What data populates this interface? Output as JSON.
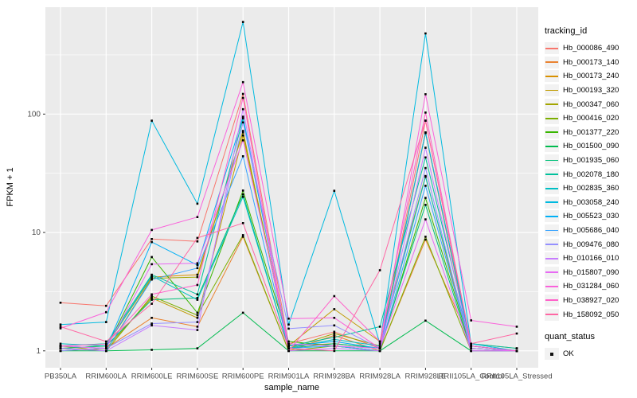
{
  "figure": {
    "background": "#FFFFFF",
    "panel_background": "#EBEBEB",
    "gridline_color": "#FFFFFF",
    "axis_text_color": "#4D4D4D",
    "tick_mark_color": "#333333",
    "point_color": "#000000"
  },
  "chart_data": {
    "type": "line",
    "title": "",
    "xlabel": "sample_name",
    "ylabel": "FPKM + 1",
    "y_scale": "log10",
    "ylim": [
      0.72,
      800
    ],
    "y_ticks": [
      1,
      10,
      100
    ],
    "y_minor_ticks": [
      3.162,
      31.62,
      316.2
    ],
    "grid": "on",
    "legend_position": "right",
    "legend_title": "tracking_id",
    "marker": "small-black-square",
    "categories": [
      "PB350LA",
      "RRIM600LA",
      "RRIM600LE",
      "RRIM600SE",
      "RRIM600PE",
      "RRIM901LA",
      "RRIM928BA",
      "RRIM928LA",
      "RRIM928LE",
      "RRII105LA_Control",
      "RRII105LA_Stressed"
    ],
    "series": [
      {
        "name": "Hb_000086_490",
        "color": "#F8766D",
        "values": [
          2.55,
          2.4,
          8.8,
          8.4,
          148,
          1.15,
          1.45,
          1.05,
          88,
          1.1,
          1.0
        ]
      },
      {
        "name": "Hb_000173_140",
        "color": "#EA8331",
        "values": [
          1.1,
          1.05,
          1.9,
          1.6,
          9.2,
          1.0,
          1.35,
          1.0,
          8.7,
          1.15,
          1.05
        ]
      },
      {
        "name": "Hb_000173_240",
        "color": "#D89000",
        "values": [
          1.05,
          1.1,
          4.2,
          4.4,
          70,
          1.1,
          1.15,
          1.05,
          69,
          1.05,
          1.0
        ]
      },
      {
        "name": "Hb_000193_320",
        "color": "#C09B00",
        "values": [
          1.0,
          1.05,
          2.8,
          1.9,
          66,
          1.1,
          2.25,
          1.2,
          30,
          1.0,
          1.0
        ]
      },
      {
        "name": "Hb_000347_060",
        "color": "#A3A500",
        "values": [
          1.1,
          1.0,
          4.1,
          4.2,
          72,
          1.05,
          1.4,
          1.1,
          70,
          1.1,
          1.0
        ]
      },
      {
        "name": "Hb_000416_020",
        "color": "#7CAE00",
        "values": [
          1.05,
          1.0,
          2.9,
          2.0,
          9.5,
          1.0,
          1.1,
          1.0,
          9.2,
          1.0,
          1.0
        ]
      },
      {
        "name": "Hb_001377_220",
        "color": "#39B600",
        "values": [
          1.0,
          1.05,
          6.2,
          2.1,
          22.6,
          1.2,
          1.1,
          1.0,
          19.6,
          1.05,
          1.0
        ]
      },
      {
        "name": "Hb_001500_090",
        "color": "#00BB4E",
        "values": [
          1.0,
          1.0,
          1.02,
          1.05,
          2.1,
          1.0,
          1.0,
          1.0,
          1.8,
          1.0,
          1.0
        ]
      },
      {
        "name": "Hb_001935_060",
        "color": "#00C079",
        "values": [
          1.05,
          1.1,
          2.7,
          2.8,
          21,
          1.05,
          1.15,
          1.05,
          17.1,
          1.0,
          1.0
        ]
      },
      {
        "name": "Hb_002078_180",
        "color": "#00C19C",
        "values": [
          1.1,
          1.15,
          4.4,
          3.0,
          92,
          1.1,
          1.3,
          1.6,
          43,
          1.15,
          1.05
        ]
      },
      {
        "name": "Hb_002835_360",
        "color": "#00BFC4",
        "values": [
          1.15,
          1.1,
          4.3,
          2.7,
          20,
          1.05,
          1.25,
          1.1,
          29.5,
          1.1,
          1.0
        ]
      },
      {
        "name": "Hb_003058_240",
        "color": "#00BAE0",
        "values": [
          1.67,
          1.75,
          88,
          17.5,
          600,
          1.67,
          22.5,
          1.15,
          480,
          1.15,
          1.0
        ]
      },
      {
        "name": "Hb_005523_030",
        "color": "#00B0F6",
        "values": [
          1.1,
          1.05,
          8.3,
          5.3,
          95,
          1.1,
          1.2,
          1.05,
          70,
          1.1,
          1.0
        ]
      },
      {
        "name": "Hb_005686_040",
        "color": "#35A2FF",
        "values": [
          1.05,
          1.0,
          4.0,
          5.0,
          44,
          1.05,
          1.1,
          1.0,
          24.8,
          1.05,
          1.0
        ]
      },
      {
        "name": "Hb_009476_080",
        "color": "#9590FF",
        "values": [
          1.0,
          1.05,
          1.7,
          1.75,
          85,
          1.54,
          1.64,
          1.05,
          35,
          1.0,
          1.0
        ]
      },
      {
        "name": "Hb_010166_010",
        "color": "#C77CFF",
        "values": [
          1.05,
          1.0,
          1.64,
          1.5,
          110,
          1.0,
          1.05,
          1.0,
          52,
          1.05,
          1.0
        ]
      },
      {
        "name": "Hb_015807_090",
        "color": "#E76BF3",
        "values": [
          1.1,
          1.05,
          5.4,
          5.5,
          60,
          1.15,
          1.1,
          1.05,
          12.9,
          1.0,
          1.0
        ]
      },
      {
        "name": "Hb_031284_060",
        "color": "#FA62DB",
        "values": [
          1.55,
          2.12,
          10.5,
          13.5,
          186,
          1.87,
          1.9,
          1.05,
          147,
          1.81,
          1.6
        ]
      },
      {
        "name": "Hb_038927_020",
        "color": "#FF61C9",
        "values": [
          1.1,
          1.14,
          3.0,
          3.6,
          137,
          1.0,
          2.9,
          1.2,
          103,
          1.1,
          1.0
        ]
      },
      {
        "name": "Hb_158092_050",
        "color": "#FF67A4",
        "values": [
          1.6,
          1.2,
          2.5,
          9.0,
          12,
          1.05,
          1.0,
          4.8,
          88,
          1.15,
          1.4
        ]
      }
    ],
    "legend2": {
      "title": "quant_status",
      "items": [
        {
          "label": "OK",
          "marker": "black-square"
        }
      ]
    }
  }
}
